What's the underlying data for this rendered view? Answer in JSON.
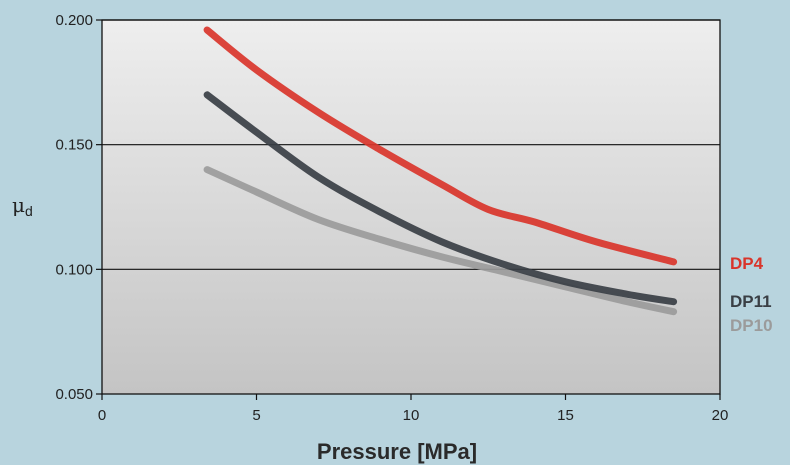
{
  "chart_data": {
    "type": "line",
    "title": "",
    "xlabel": "Pressure [MPa]",
    "ylabel": "μd",
    "ylabel_main": "μ",
    "ylabel_sub": "d",
    "xlim": [
      0,
      20
    ],
    "ylim": [
      0.05,
      0.2
    ],
    "xticks": [
      0,
      5,
      10,
      15,
      20
    ],
    "xtick_labels": [
      "0",
      "5",
      "10",
      "15",
      "20"
    ],
    "yticks": [
      0.05,
      0.1,
      0.15,
      0.2
    ],
    "ytick_labels": [
      "0.050",
      "0.100",
      "0.150",
      "0.200"
    ],
    "grid": "horizontal at 0.100, 0.150, 0.200",
    "legend": "series labels at right end of lines",
    "series": [
      {
        "name": "DP4",
        "color": "#d9352b",
        "x": [
          3.4,
          5,
          7,
          9,
          11,
          12.5,
          14,
          16,
          18.5
        ],
        "y": [
          0.196,
          0.18,
          0.163,
          0.148,
          0.134,
          0.124,
          0.119,
          0.111,
          0.103
        ]
      },
      {
        "name": "DP11",
        "color": "#3a3f45",
        "x": [
          3.4,
          5,
          7,
          9,
          11,
          13,
          15,
          17,
          18.5
        ],
        "y": [
          0.17,
          0.155,
          0.137,
          0.123,
          0.111,
          0.102,
          0.095,
          0.09,
          0.087
        ]
      },
      {
        "name": "DP10",
        "color": "#9b9b9b",
        "x": [
          3.4,
          5,
          7,
          9,
          11,
          13,
          15,
          17,
          18.5
        ],
        "y": [
          0.14,
          0.131,
          0.12,
          0.112,
          0.105,
          0.099,
          0.093,
          0.087,
          0.083
        ]
      }
    ]
  }
}
